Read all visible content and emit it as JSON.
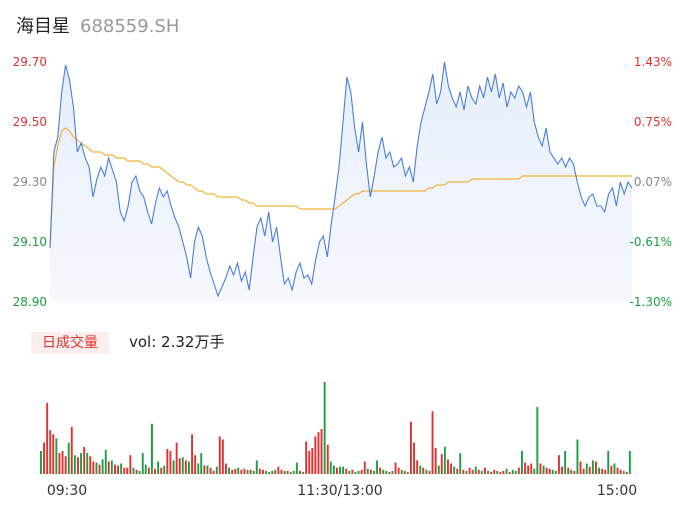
{
  "header": {
    "name": "海目星",
    "code": "688559.SH"
  },
  "price_axis": {
    "left_labels": [
      "29.70",
      "29.50",
      "29.30",
      "29.10",
      "28.90"
    ],
    "right_labels": [
      "1.43%",
      "0.75%",
      "0.07%",
      "-0.61%",
      "-1.30%"
    ],
    "colors": [
      "#e03131",
      "#e03131",
      "#888888",
      "#1a9e3f",
      "#1a9e3f"
    ]
  },
  "time_axis": {
    "labels": [
      "09:30",
      "11:30/13:00",
      "15:00"
    ]
  },
  "volume": {
    "tab_label": "日成交量",
    "text": "vol: 2.32万手"
  },
  "colors": {
    "price_line": "#4a7fd8",
    "avg_line": "#f2b43c",
    "up": "#e03131",
    "down": "#1a9e3f"
  },
  "chart_data": [
    {
      "type": "line",
      "title": "",
      "ylim": [
        28.9,
        29.7
      ],
      "series": [
        {
          "values": [
            29.08,
            29.4,
            29.45,
            29.6,
            29.69,
            29.64,
            29.55,
            29.4,
            29.43,
            29.38,
            29.35,
            29.25,
            29.31,
            29.35,
            29.32,
            29.38,
            29.34,
            29.3,
            29.2,
            29.17,
            29.22,
            29.3,
            29.32,
            29.27,
            29.25,
            29.2,
            29.16,
            29.23,
            29.28,
            29.25,
            29.27,
            29.22,
            29.18,
            29.15,
            29.1,
            29.05,
            28.98,
            29.1,
            29.15,
            29.12,
            29.05,
            29.0,
            28.96,
            28.92,
            28.95,
            28.98,
            29.02,
            28.99,
            29.03,
            28.97,
            29.0,
            28.94,
            29.05,
            29.15,
            29.18,
            29.12,
            29.2,
            29.1,
            29.15,
            29.05,
            28.96,
            28.98,
            28.94,
            29.0,
            29.03,
            28.98,
            28.99,
            28.96,
            29.04,
            29.1,
            29.12,
            29.05,
            29.16,
            29.25,
            29.35,
            29.5,
            29.65,
            29.6,
            29.48,
            29.4,
            29.5,
            29.36,
            29.25,
            29.32,
            29.4,
            29.45,
            29.38,
            29.4,
            29.35,
            29.36,
            29.38,
            29.32,
            29.35,
            29.3,
            29.42,
            29.5,
            29.55,
            29.6,
            29.66,
            29.56,
            29.6,
            29.7,
            29.62,
            29.58,
            29.55,
            29.6,
            29.54,
            29.62,
            29.58,
            29.56,
            29.62,
            29.58,
            29.65,
            29.6,
            29.66,
            29.58,
            29.63,
            29.55,
            29.6,
            29.58,
            29.62,
            29.6,
            29.55,
            29.6,
            29.5,
            29.45,
            29.42,
            29.48,
            29.4,
            29.38,
            29.36,
            29.38,
            29.35,
            29.38,
            29.36,
            29.3,
            29.25,
            29.22,
            29.25,
            29.26,
            29.22,
            29.22,
            29.2,
            29.26,
            29.28,
            29.22,
            29.3,
            29.26,
            29.3,
            29.28
          ]
        },
        {
          "values": [
            29.08,
            29.35,
            29.42,
            29.47,
            29.48,
            29.47,
            29.45,
            29.44,
            29.43,
            29.42,
            29.41,
            29.4,
            29.4,
            29.4,
            29.39,
            29.39,
            29.39,
            29.38,
            29.38,
            29.38,
            29.37,
            29.37,
            29.37,
            29.37,
            29.36,
            29.36,
            29.35,
            29.35,
            29.35,
            29.34,
            29.33,
            29.32,
            29.31,
            29.3,
            29.3,
            29.29,
            29.29,
            29.28,
            29.27,
            29.27,
            29.26,
            29.26,
            29.26,
            29.25,
            29.25,
            29.25,
            29.25,
            29.25,
            29.25,
            29.24,
            29.24,
            29.23,
            29.23,
            29.22,
            29.22,
            29.22,
            29.22,
            29.22,
            29.22,
            29.22,
            29.22,
            29.22,
            29.22,
            29.22,
            29.21,
            29.21,
            29.21,
            29.21,
            29.21,
            29.21,
            29.21,
            29.21,
            29.21,
            29.21,
            29.22,
            29.23,
            29.24,
            29.25,
            29.26,
            29.26,
            29.27,
            29.27,
            29.27,
            29.27,
            29.27,
            29.27,
            29.27,
            29.27,
            29.27,
            29.27,
            29.27,
            29.27,
            29.27,
            29.27,
            29.27,
            29.27,
            29.27,
            29.28,
            29.28,
            29.29,
            29.29,
            29.29,
            29.3,
            29.3,
            29.3,
            29.3,
            29.3,
            29.3,
            29.31,
            29.31,
            29.31,
            29.31,
            29.31,
            29.31,
            29.31,
            29.31,
            29.31,
            29.31,
            29.31,
            29.31,
            29.31,
            29.32,
            29.32,
            29.32,
            29.32,
            29.32,
            29.32,
            29.32,
            29.32,
            29.32,
            29.32,
            29.32,
            29.32,
            29.32,
            29.32,
            29.32,
            29.32,
            29.32,
            29.32,
            29.32,
            29.32,
            29.32,
            29.32,
            29.32,
            29.32,
            29.32,
            29.32,
            29.32,
            29.32,
            29.32
          ]
        }
      ]
    },
    {
      "type": "bar",
      "title": "",
      "values": [
        22,
        30,
        68,
        42,
        38,
        34,
        20,
        22,
        17,
        30,
        45,
        18,
        16,
        20,
        26,
        20,
        17,
        12,
        11,
        9,
        14,
        23,
        12,
        13,
        9,
        8,
        10,
        6,
        6,
        18,
        6,
        4,
        3,
        20,
        9,
        6,
        48,
        5,
        12,
        6,
        8,
        24,
        22,
        13,
        30,
        15,
        16,
        13,
        12,
        38,
        18,
        10,
        20,
        8,
        8,
        6,
        3,
        7,
        36,
        33,
        10,
        6,
        4,
        5,
        6,
        4,
        5,
        4,
        4,
        3,
        13,
        5,
        4,
        3,
        2,
        3,
        4,
        7,
        4,
        3,
        3,
        2,
        3,
        11,
        3,
        2,
        31,
        22,
        25,
        36,
        40,
        43,
        88,
        28,
        12,
        8,
        6,
        7,
        7,
        5,
        3,
        4,
        2,
        3,
        4,
        12,
        5,
        4,
        3,
        13,
        6,
        4,
        3,
        2,
        3,
        11,
        6,
        4,
        3,
        2,
        50,
        30,
        13,
        8,
        6,
        4,
        3,
        60,
        25,
        8,
        19,
        26,
        14,
        10,
        7,
        5,
        20,
        4,
        3,
        6,
        4,
        7,
        4,
        3,
        6,
        3,
        2,
        4,
        3,
        2,
        3,
        5,
        2,
        4,
        3,
        6,
        22,
        11,
        8,
        10,
        5,
        64,
        10,
        8,
        6,
        5,
        4,
        3,
        18,
        7,
        22,
        6,
        4,
        3,
        33,
        12,
        5,
        10,
        7,
        13,
        12,
        6,
        5,
        4,
        22,
        8,
        10,
        6,
        4,
        3,
        2,
        22
      ],
      "up": [
        0,
        1,
        1,
        1,
        1,
        0,
        1,
        1,
        1,
        0,
        1,
        0,
        1,
        0,
        1,
        0,
        1,
        1,
        0,
        1,
        0,
        0,
        1,
        0,
        1,
        1,
        0,
        1,
        1,
        1,
        0,
        1,
        0,
        0,
        0,
        1,
        0,
        1,
        0,
        1,
        0,
        1,
        1,
        0,
        1,
        1,
        0,
        1,
        0,
        1,
        1,
        0,
        0,
        1,
        0,
        1,
        1,
        0,
        1,
        1,
        1,
        0,
        1,
        1,
        0,
        1,
        1,
        0,
        1,
        0,
        0,
        1,
        1,
        0,
        0,
        1,
        0,
        1,
        1,
        0,
        1,
        0,
        0,
        0,
        1,
        0,
        1,
        1,
        1,
        1,
        1,
        1,
        0,
        1,
        0,
        0,
        1,
        0,
        0,
        1,
        0,
        1,
        0,
        0,
        1,
        1,
        0,
        1,
        0,
        0,
        1,
        0,
        0,
        1,
        0,
        1,
        1,
        0,
        1,
        0,
        1,
        1,
        1,
        0,
        1,
        0,
        1,
        1,
        1,
        0,
        1,
        0,
        1,
        1,
        0,
        1,
        0,
        1,
        0,
        1,
        1,
        0,
        1,
        0,
        1,
        0,
        1,
        1,
        0,
        1,
        1,
        0,
        1,
        0,
        0,
        1,
        0,
        1,
        1,
        1,
        0,
        0,
        1,
        0,
        1,
        1,
        0,
        0,
        1,
        1,
        0,
        1,
        0,
        1,
        0,
        1,
        1,
        0,
        1,
        0,
        1,
        0,
        1,
        1,
        0,
        1,
        0,
        1,
        1,
        0,
        1,
        0
      ]
    }
  ]
}
